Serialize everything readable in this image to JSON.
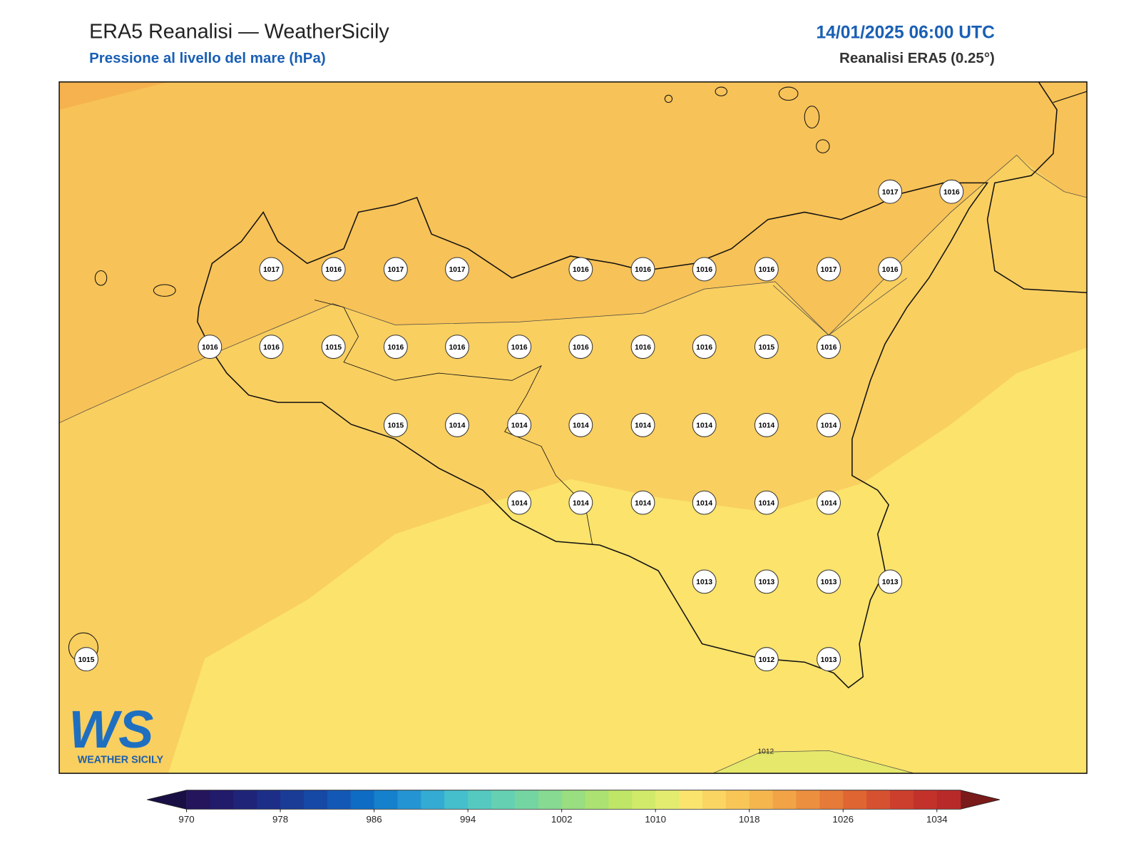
{
  "header": {
    "title": "ERA5 Reanalisi — WeatherSicily",
    "subtitle": "Pressione al livello del mare (hPa)",
    "datetime": "14/01/2025 06:00 UTC",
    "source": "Reanalisi ERA5 (0.25°)"
  },
  "map": {
    "stations": [
      1017,
      1016,
      1017,
      1016,
      1017,
      1017,
      1016,
      1016,
      1016,
      1016,
      1017,
      1016,
      1016,
      1016,
      1015,
      1016,
      1016,
      1016,
      1016,
      1016,
      1016,
      1015,
      1016,
      1015,
      1014,
      1014,
      1014,
      1014,
      1014,
      1014,
      1014,
      1014,
      1014,
      1014,
      1014,
      1014,
      1014,
      1013,
      1013,
      1013,
      1013,
      1015,
      1012,
      1013
    ],
    "contour_label": "1012"
  },
  "colorbar": {
    "range": [
      970,
      1036
    ],
    "ticks": [
      970,
      978,
      986,
      994,
      1002,
      1010,
      1018,
      1026,
      1034
    ],
    "colors": [
      "#24155c",
      "#221a6b",
      "#1f2478",
      "#1c2e87",
      "#1a3b96",
      "#1648a6",
      "#1358b5",
      "#0f6cc4",
      "#1580cc",
      "#2495d2",
      "#33abd3",
      "#45bfcc",
      "#55c9c0",
      "#65d0b2",
      "#74d5a3",
      "#86da91",
      "#99de80",
      "#abe271",
      "#bfe667",
      "#d2ea6a",
      "#e3ec6e",
      "#fbe46d",
      "#fad562",
      "#f8c657",
      "#f5b64e",
      "#f1a346",
      "#ec8f3f",
      "#e67a38",
      "#df6533",
      "#d6512f",
      "#cd3f2d",
      "#c2322b",
      "#b82a2a"
    ]
  },
  "logo": {
    "mark": "WS",
    "name": "WEATHER SICILY"
  }
}
